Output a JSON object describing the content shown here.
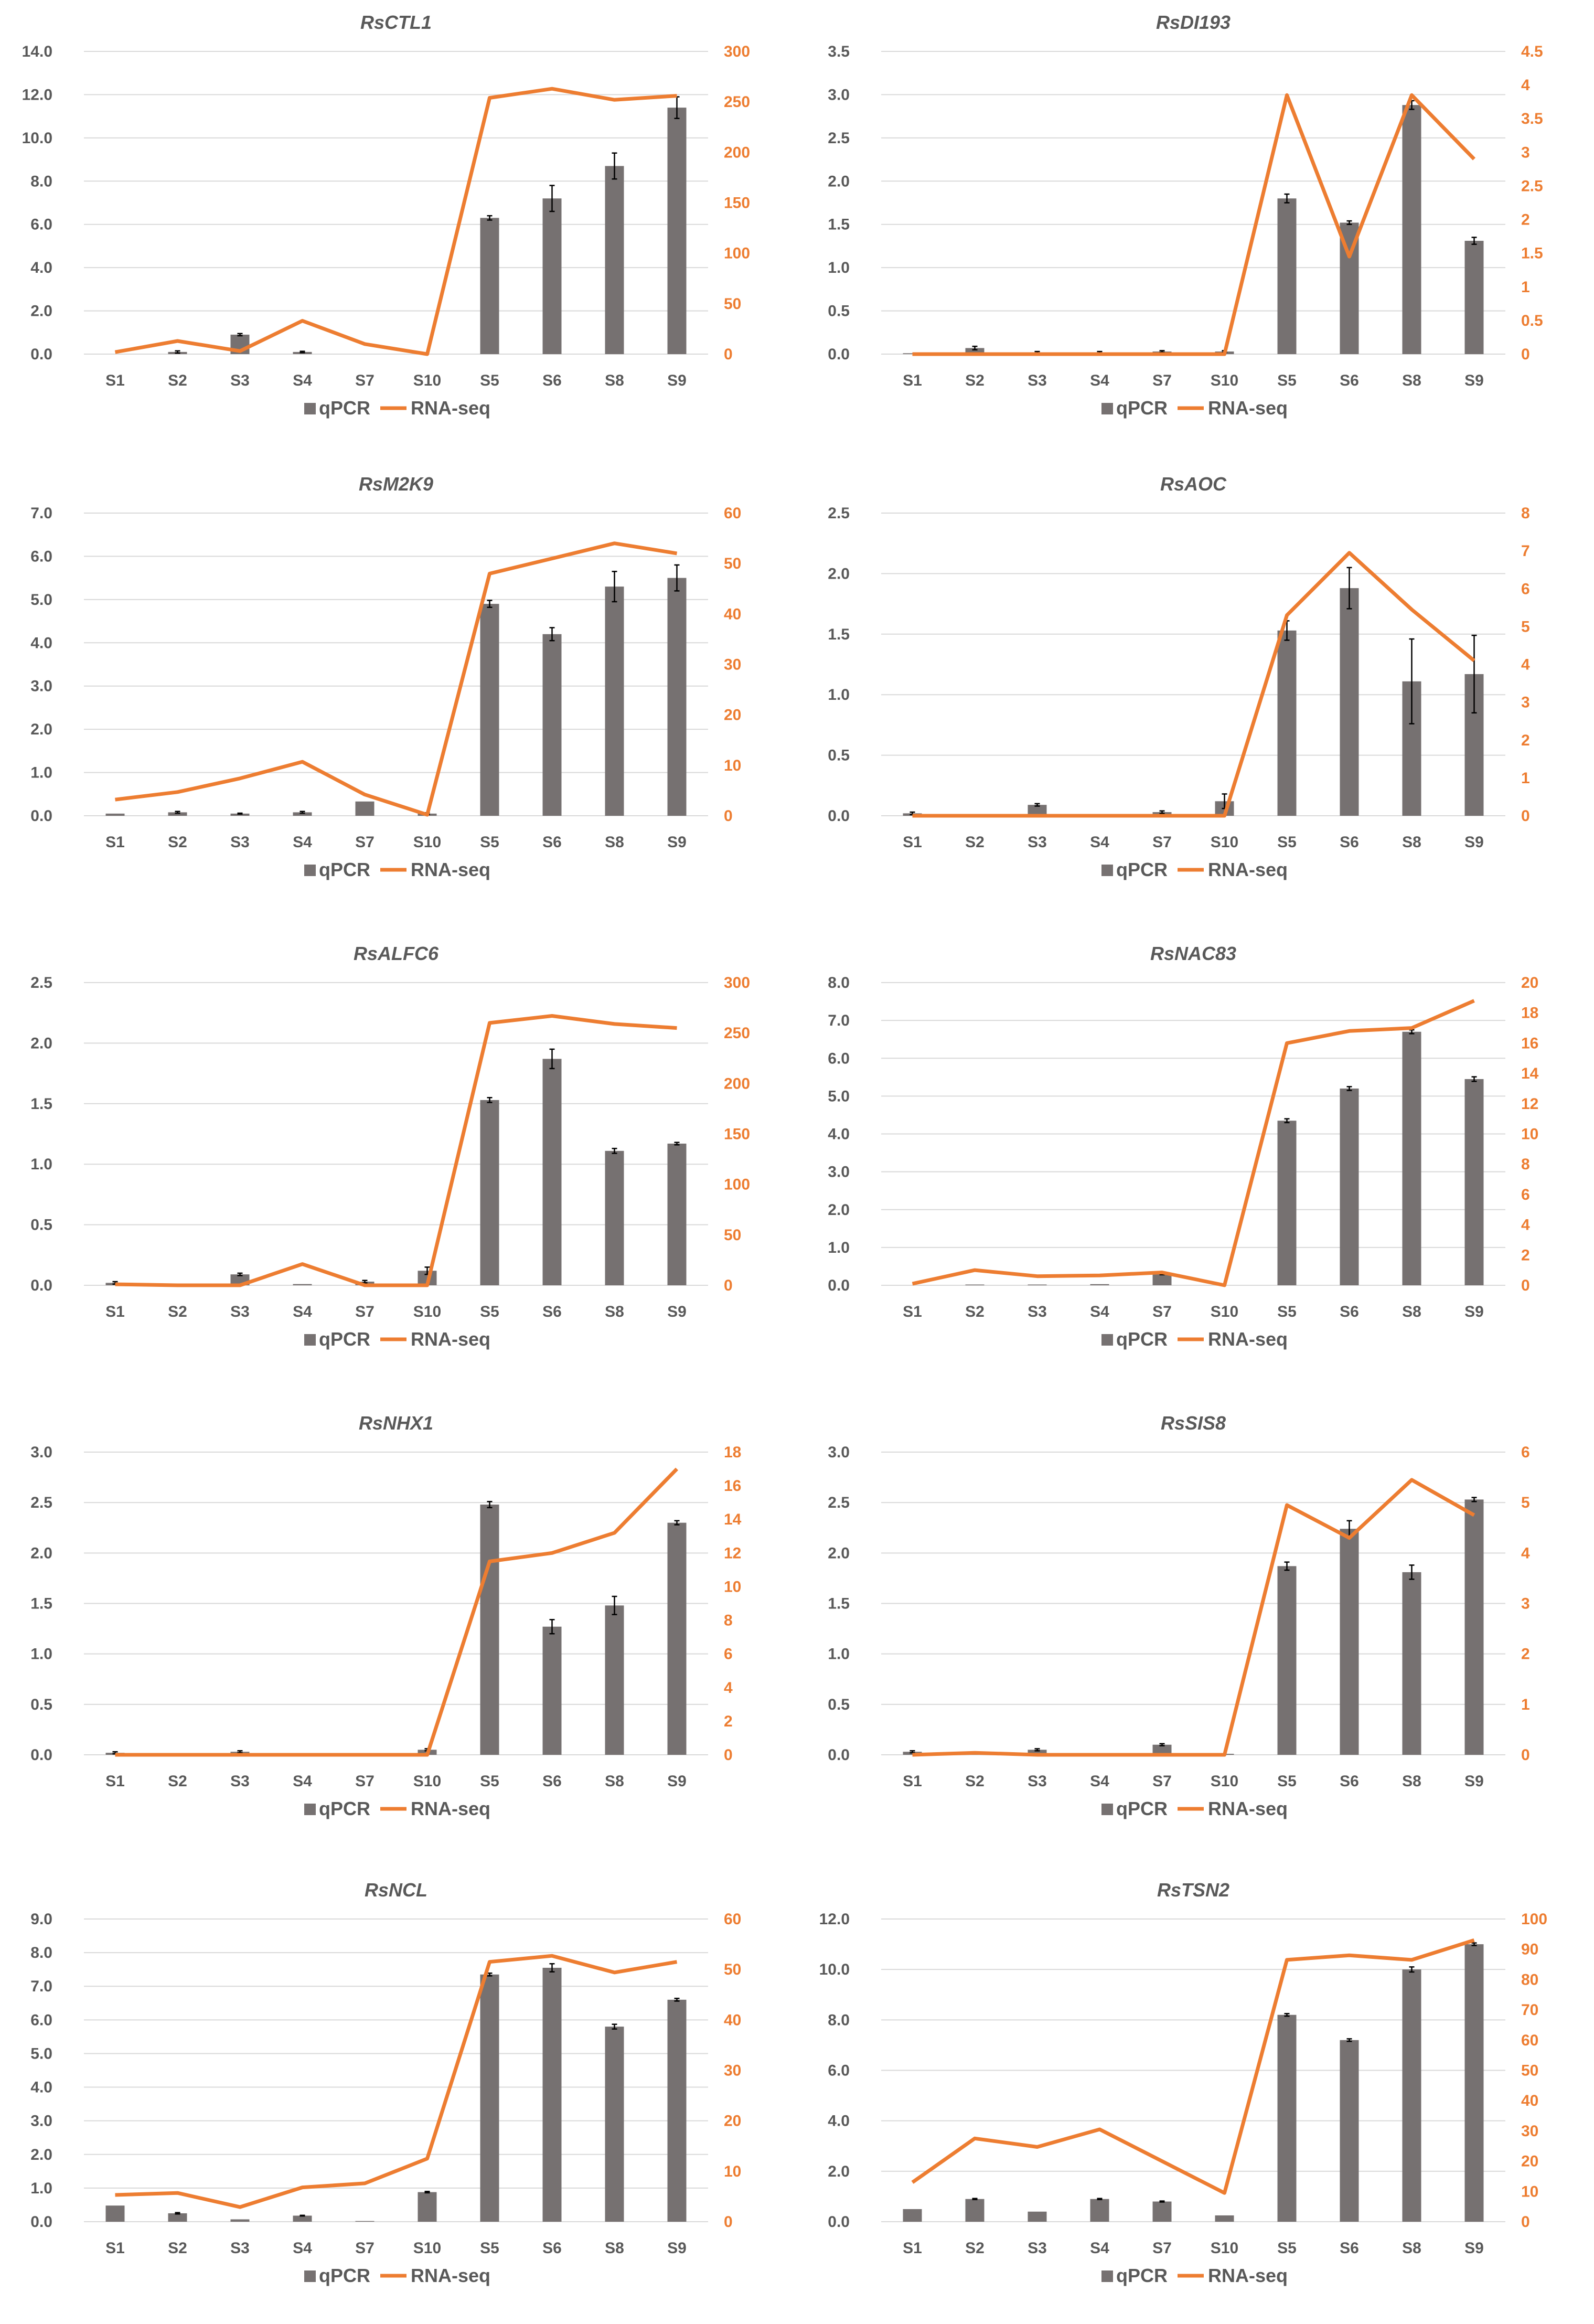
{
  "legend": {
    "bar_label": "qPCR",
    "line_label": "RNA-seq"
  },
  "colors": {
    "bar": "#767171",
    "line": "#ED7D31",
    "grid": "#D9D9D9",
    "error": "#000000"
  },
  "chart_data": [
    {
      "type": "bar",
      "title": "RsCTL1",
      "categories": [
        "S1",
        "S2",
        "S3",
        "S4",
        "S7",
        "S10",
        "S5",
        "S6",
        "S8",
        "S9"
      ],
      "series": [
        {
          "name": "qPCR",
          "axis": "left",
          "values": [
            0.0,
            0.1,
            0.9,
            0.1,
            0.0,
            0.0,
            6.3,
            7.2,
            8.7,
            11.4
          ],
          "errors": [
            0,
            0.05,
            0.05,
            0.03,
            0,
            0,
            0.1,
            0.6,
            0.6,
            0.5
          ]
        },
        {
          "name": "RNA-seq",
          "axis": "right",
          "type": "line",
          "values": [
            2,
            13,
            3,
            33,
            10,
            0,
            254,
            263,
            252,
            256
          ]
        }
      ],
      "ylim_left": [
        0,
        14
      ],
      "yticks_left": [
        "0.0",
        "2.0",
        "4.0",
        "6.0",
        "8.0",
        "10.0",
        "12.0",
        "14.0"
      ],
      "ylim_right": [
        0,
        300
      ],
      "yticks_right": [
        "0",
        "50",
        "100",
        "150",
        "200",
        "250",
        "300"
      ]
    },
    {
      "type": "bar",
      "title": "RsDI193",
      "categories": [
        "S1",
        "S2",
        "S3",
        "S4",
        "S7",
        "S10",
        "S5",
        "S6",
        "S8",
        "S9"
      ],
      "series": [
        {
          "name": "qPCR",
          "axis": "left",
          "values": [
            0.01,
            0.07,
            0.02,
            0.02,
            0.03,
            0.03,
            1.8,
            1.52,
            2.88,
            1.31
          ],
          "errors": [
            0,
            0.02,
            0.01,
            0.01,
            0.01,
            0.01,
            0.05,
            0.02,
            0.05,
            0.04
          ]
        },
        {
          "name": "RNA-seq",
          "axis": "right",
          "type": "line",
          "values": [
            0,
            0,
            0,
            0,
            0,
            0,
            3.85,
            1.45,
            3.85,
            2.9
          ]
        }
      ],
      "ylim_left": [
        0,
        3.5
      ],
      "yticks_left": [
        "0.0",
        "0.5",
        "1.0",
        "1.5",
        "2.0",
        "2.5",
        "3.0",
        "3.5"
      ],
      "ylim_right": [
        0,
        4.5
      ],
      "yticks_right": [
        "0",
        "0.5",
        "1",
        "1.5",
        "2",
        "2.5",
        "3",
        "3.5",
        "4",
        "4.5"
      ]
    },
    {
      "type": "bar",
      "title": "RsM2K9",
      "categories": [
        "S1",
        "S2",
        "S3",
        "S4",
        "S7",
        "S10",
        "S5",
        "S6",
        "S8",
        "S9"
      ],
      "series": [
        {
          "name": "qPCR",
          "axis": "left",
          "values": [
            0.05,
            0.08,
            0.05,
            0.08,
            0.33,
            0.05,
            4.9,
            4.2,
            5.3,
            5.5
          ],
          "errors": [
            0,
            0.02,
            0.01,
            0.02,
            0,
            0.02,
            0.08,
            0.15,
            0.35,
            0.3
          ]
        },
        {
          "name": "RNA-seq",
          "axis": "right",
          "type": "line",
          "values": [
            3.2,
            4.7,
            7.4,
            10.7,
            4.2,
            0.2,
            48,
            51,
            54,
            52
          ]
        }
      ],
      "ylim_left": [
        0,
        7
      ],
      "yticks_left": [
        "0.0",
        "1.0",
        "2.0",
        "3.0",
        "4.0",
        "5.0",
        "6.0",
        "7.0"
      ],
      "ylim_right": [
        0,
        60
      ],
      "yticks_right": [
        "0",
        "10",
        "20",
        "30",
        "40",
        "50",
        "60"
      ]
    },
    {
      "type": "bar",
      "title": "RsAOC",
      "categories": [
        "S1",
        "S2",
        "S3",
        "S4",
        "S7",
        "S10",
        "S5",
        "S6",
        "S8",
        "S9"
      ],
      "series": [
        {
          "name": "qPCR",
          "axis": "left",
          "values": [
            0.02,
            0.01,
            0.09,
            0.01,
            0.03,
            0.12,
            1.53,
            1.88,
            1.11,
            1.17
          ],
          "errors": [
            0.01,
            0,
            0.01,
            0,
            0.01,
            0.06,
            0.08,
            0.17,
            0.35,
            0.32
          ]
        },
        {
          "name": "RNA-seq",
          "axis": "right",
          "type": "line",
          "values": [
            0,
            0,
            0,
            0,
            0,
            0,
            5.3,
            6.95,
            5.45,
            4.1
          ]
        }
      ],
      "ylim_left": [
        0,
        2.5
      ],
      "yticks_left": [
        "0.0",
        "0.5",
        "1.0",
        "1.5",
        "2.0",
        "2.5"
      ],
      "ylim_right": [
        0,
        8
      ],
      "yticks_right": [
        "0",
        "1",
        "2",
        "3",
        "4",
        "5",
        "6",
        "7",
        "8"
      ]
    },
    {
      "type": "bar",
      "title": "RsALFC6",
      "categories": [
        "S1",
        "S2",
        "S3",
        "S4",
        "S7",
        "S10",
        "S5",
        "S6",
        "S8",
        "S9"
      ],
      "series": [
        {
          "name": "qPCR",
          "axis": "left",
          "values": [
            0.02,
            0.01,
            0.09,
            0.01,
            0.03,
            0.12,
            1.53,
            1.87,
            1.11,
            1.17
          ],
          "errors": [
            0.01,
            0,
            0.01,
            0,
            0.01,
            0.03,
            0.02,
            0.08,
            0.02,
            0.01
          ]
        },
        {
          "name": "RNA-seq",
          "axis": "right",
          "type": "line",
          "values": [
            1,
            0,
            0,
            21,
            0,
            0,
            260,
            267,
            259,
            255
          ]
        }
      ],
      "ylim_left": [
        0,
        2.5
      ],
      "yticks_left": [
        "0.0",
        "0.5",
        "1.0",
        "1.5",
        "2.0",
        "2.5"
      ],
      "ylim_right": [
        0,
        300
      ],
      "yticks_right": [
        "0",
        "50",
        "100",
        "150",
        "200",
        "250",
        "300"
      ]
    },
    {
      "type": "bar",
      "title": "RsNAC83",
      "categories": [
        "S1",
        "S2",
        "S3",
        "S4",
        "S7",
        "S10",
        "S5",
        "S6",
        "S8",
        "S9"
      ],
      "series": [
        {
          "name": "qPCR",
          "axis": "left",
          "values": [
            0.0,
            0.02,
            0.02,
            0.03,
            0.3,
            0.0,
            4.35,
            5.2,
            6.7,
            5.45
          ],
          "errors": [
            0,
            0,
            0,
            0,
            0.02,
            0,
            0.05,
            0.05,
            0.05,
            0.06
          ]
        },
        {
          "name": "RNA-seq",
          "axis": "right",
          "type": "line",
          "values": [
            0.1,
            1.0,
            0.6,
            0.65,
            0.85,
            0,
            16,
            16.8,
            17,
            18.8
          ]
        }
      ],
      "ylim_left": [
        0,
        8
      ],
      "yticks_left": [
        "0.0",
        "1.0",
        "2.0",
        "3.0",
        "4.0",
        "5.0",
        "6.0",
        "7.0",
        "8.0"
      ],
      "ylim_right": [
        0,
        20
      ],
      "yticks_right": [
        "0",
        "2",
        "4",
        "6",
        "8",
        "10",
        "12",
        "14",
        "16",
        "18",
        "20"
      ]
    },
    {
      "type": "bar",
      "title": "RsNHX1",
      "categories": [
        "S1",
        "S2",
        "S3",
        "S4",
        "S7",
        "S10",
        "S5",
        "S6",
        "S8",
        "S9"
      ],
      "series": [
        {
          "name": "qPCR",
          "axis": "left",
          "values": [
            0.02,
            0.0,
            0.03,
            0.0,
            0.0,
            0.05,
            2.48,
            1.27,
            1.48,
            2.3
          ],
          "errors": [
            0.01,
            0,
            0.01,
            0,
            0,
            0.01,
            0.03,
            0.07,
            0.09,
            0.02
          ]
        },
        {
          "name": "RNA-seq",
          "axis": "right",
          "type": "line",
          "values": [
            0,
            0,
            0,
            0,
            0,
            0,
            11.5,
            12,
            13.2,
            17
          ]
        }
      ],
      "ylim_left": [
        0,
        3
      ],
      "yticks_left": [
        "0.0",
        "0.5",
        "1.0",
        "1.5",
        "2.0",
        "2.5",
        "3.0"
      ],
      "ylim_right": [
        0,
        18
      ],
      "yticks_right": [
        "0",
        "2",
        "4",
        "6",
        "8",
        "10",
        "12",
        "14",
        "16",
        "18"
      ]
    },
    {
      "type": "bar",
      "title": "RsSIS8",
      "categories": [
        "S1",
        "S2",
        "S3",
        "S4",
        "S7",
        "S10",
        "S5",
        "S6",
        "S8",
        "S9"
      ],
      "series": [
        {
          "name": "qPCR",
          "axis": "left",
          "values": [
            0.03,
            0.01,
            0.05,
            0.0,
            0.1,
            0.01,
            1.87,
            2.24,
            1.81,
            2.53
          ],
          "errors": [
            0.01,
            0,
            0.01,
            0,
            0.01,
            0,
            0.04,
            0.08,
            0.07,
            0.02
          ]
        },
        {
          "name": "RNA-seq",
          "axis": "right",
          "type": "line",
          "values": [
            0,
            0.04,
            0,
            0,
            0,
            0,
            4.95,
            4.3,
            5.45,
            4.75
          ]
        }
      ],
      "ylim_left": [
        0,
        3
      ],
      "yticks_left": [
        "0.0",
        "0.5",
        "1.0",
        "1.5",
        "2.0",
        "2.5",
        "3.0"
      ],
      "ylim_right": [
        0,
        6
      ],
      "yticks_right": [
        "0",
        "1",
        "2",
        "3",
        "4",
        "5",
        "6"
      ]
    },
    {
      "type": "bar",
      "title": "RsNCL",
      "categories": [
        "S1",
        "S2",
        "S3",
        "S4",
        "S7",
        "S10",
        "S5",
        "S6",
        "S8",
        "S9"
      ],
      "series": [
        {
          "name": "qPCR",
          "axis": "left",
          "values": [
            0.48,
            0.25,
            0.07,
            0.18,
            0.02,
            0.88,
            7.35,
            7.55,
            5.8,
            6.6
          ],
          "errors": [
            0,
            0.02,
            0,
            0.01,
            0,
            0.02,
            0.04,
            0.12,
            0.07,
            0.04
          ]
        },
        {
          "name": "RNA-seq",
          "axis": "right",
          "type": "line",
          "values": [
            5.3,
            5.7,
            2.9,
            6.8,
            7.6,
            12.5,
            51.5,
            52.7,
            49.4,
            51.5
          ]
        }
      ],
      "ylim_left": [
        0,
        9
      ],
      "yticks_left": [
        "0.0",
        "1.0",
        "2.0",
        "3.0",
        "4.0",
        "5.0",
        "6.0",
        "7.0",
        "8.0",
        "9.0"
      ],
      "ylim_right": [
        0,
        60
      ],
      "yticks_right": [
        "0",
        "10",
        "20",
        "30",
        "40",
        "50",
        "60"
      ]
    },
    {
      "type": "bar",
      "title": "RsTSN2",
      "categories": [
        "S1",
        "S2",
        "S3",
        "S4",
        "S7",
        "S10",
        "S5",
        "S6",
        "S8",
        "S9"
      ],
      "series": [
        {
          "name": "qPCR",
          "axis": "left",
          "values": [
            0.5,
            0.9,
            0.4,
            0.9,
            0.8,
            0.25,
            8.2,
            7.2,
            10.0,
            11.0
          ],
          "errors": [
            0,
            0.02,
            0,
            0.02,
            0.02,
            0,
            0.05,
            0.05,
            0.1,
            0.05
          ]
        },
        {
          "name": "RNA-seq",
          "axis": "right",
          "type": "line",
          "values": [
            13,
            27.5,
            24.7,
            30.5,
            20,
            9.5,
            86.5,
            88,
            86.5,
            93
          ]
        }
      ],
      "ylim_left": [
        0,
        12
      ],
      "yticks_left": [
        "0.0",
        "2.0",
        "4.0",
        "6.0",
        "8.0",
        "10.0",
        "12.0"
      ],
      "ylim_right": [
        0,
        100
      ],
      "yticks_right": [
        "0",
        "10",
        "20",
        "30",
        "40",
        "50",
        "60",
        "70",
        "80",
        "90",
        "100"
      ]
    }
  ]
}
